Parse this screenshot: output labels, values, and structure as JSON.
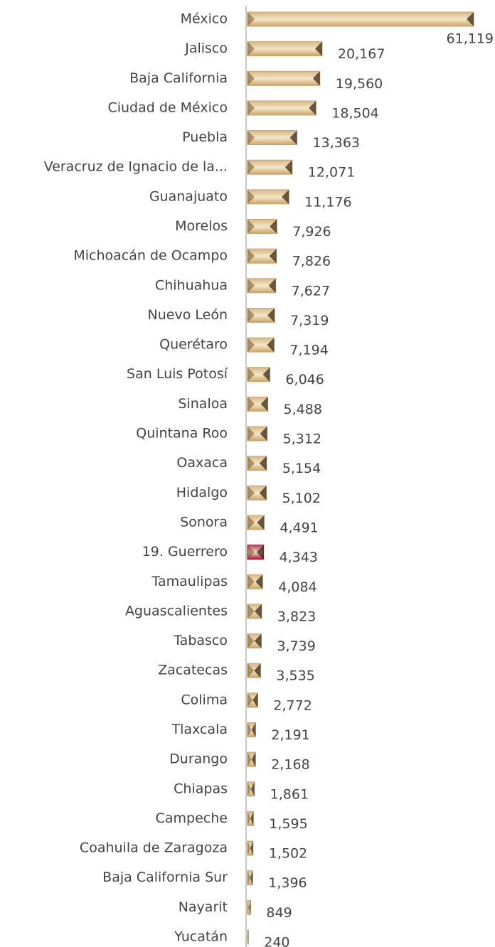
{
  "chart_data": {
    "type": "bar",
    "orientation": "horizontal",
    "categories": [
      "México",
      "Jalisco",
      "Baja California",
      "Ciudad de México",
      "Puebla",
      "Veracruz de Ignacio de la...",
      "Guanajuato",
      "Morelos",
      "Michoacán de Ocampo",
      "Chihuahua",
      "Nuevo León",
      "Querétaro",
      "San Luis Potosí",
      "Sinaloa",
      "Quintana Roo",
      "Oaxaca",
      "Hidalgo",
      "Sonora",
      "19. Guerrero",
      "Tamaulipas",
      "Aguascalientes",
      "Tabasco",
      "Zacatecas",
      "Colima",
      "Tlaxcala",
      "Durango",
      "Chiapas",
      "Campeche",
      "Coahuila de Zaragoza",
      "Baja California Sur",
      "Nayarit",
      "Yucatán"
    ],
    "values": [
      61119,
      20167,
      19560,
      18504,
      13363,
      12071,
      11176,
      7926,
      7826,
      7627,
      7319,
      7194,
      6046,
      5488,
      5312,
      5154,
      5102,
      4491,
      4343,
      4084,
      3823,
      3739,
      3535,
      2772,
      2191,
      2168,
      1861,
      1595,
      1502,
      1396,
      849,
      240
    ],
    "value_labels": [
      "61,119",
      "20,167",
      "19,560",
      "18,504",
      "13,363",
      "12,071",
      "11,176",
      "7,926",
      "7,826",
      "7,627",
      "7,319",
      "7,194",
      "6,046",
      "5,488",
      "5,312",
      "5,154",
      "5,102",
      "4,491",
      "4,343",
      "4,084",
      "3,823",
      "3,739",
      "3,535",
      "2,772",
      "2,191",
      "2,168",
      "1,861",
      "1,595",
      "1,502",
      "1,396",
      "849",
      "240"
    ],
    "colors": [
      "#c9a46a",
      "#c9a46a",
      "#c9a46a",
      "#c9a46a",
      "#c9a46a",
      "#c9a46a",
      "#c9a46a",
      "#c9a46a",
      "#c9a46a",
      "#c9a46a",
      "#c9a46a",
      "#c9a46a",
      "#c9a46a",
      "#c9a46a",
      "#c9a46a",
      "#c9a46a",
      "#c9a46a",
      "#c9a46a",
      "#a3123a",
      "#c9a46a",
      "#c9a46a",
      "#c9a46a",
      "#c9a46a",
      "#c9a46a",
      "#c9a46a",
      "#c9a46a",
      "#c9a46a",
      "#c9a46a",
      "#c9a46a",
      "#c9a46a",
      "#c9a46a",
      "#c9a46a"
    ],
    "xlim": [
      0,
      61119
    ]
  }
}
